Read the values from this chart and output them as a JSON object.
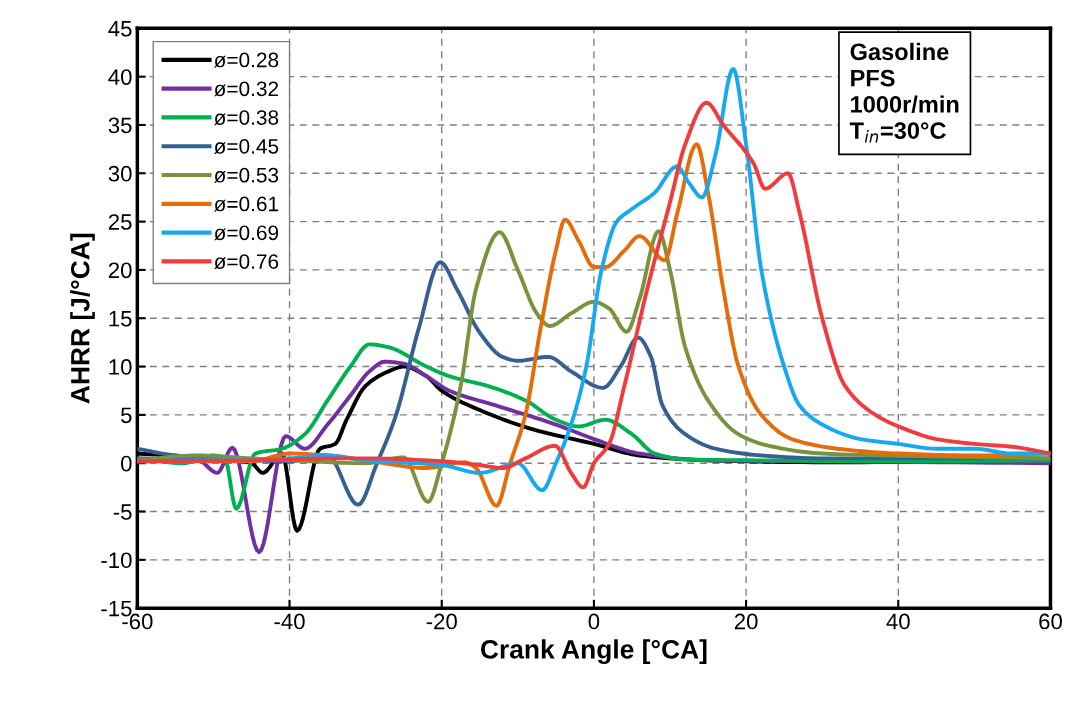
{
  "chart_data": {
    "type": "line",
    "xlabel": "Crank Angle [°CA]",
    "ylabel": "AHRR [J/°CA]",
    "xlim": [
      -60,
      60
    ],
    "xticks": [
      -60,
      -40,
      -20,
      0,
      20,
      40,
      60
    ],
    "ylim": [
      -15,
      45
    ],
    "yticks": [
      -15,
      -10,
      -5,
      0,
      5,
      10,
      15,
      20,
      25,
      30,
      35,
      40,
      45
    ],
    "grid": true,
    "legend": "top left",
    "line_style": "solid",
    "marker": "none",
    "annotations": [
      "Gasoline",
      "PFS",
      "1000r/min",
      "T$_{in}$=30°C"
    ],
    "series": [
      {
        "name": "ø=0.28",
        "color": "#000000",
        "x": [
          -60,
          -50,
          -45,
          -43.5,
          -41,
          -39,
          -36,
          -34,
          -32.5,
          -30,
          -27,
          -25,
          -22,
          -20,
          -15,
          -8,
          0,
          6,
          15,
          30,
          60
        ],
        "values": [
          1,
          0.5,
          0,
          -1,
          1,
          -7,
          1.5,
          2,
          4.5,
          8,
          9.5,
          10,
          9,
          7.5,
          5.5,
          3.5,
          2,
          0.8,
          0.3,
          0.1,
          0.2
        ]
      },
      {
        "name": "ø=0.32",
        "color": "#7030a0",
        "x": [
          -60,
          -52,
          -49.5,
          -47.5,
          -44,
          -40.5,
          -38,
          -35,
          -32,
          -29.5,
          -27.5,
          -25,
          -22,
          -19,
          -13,
          -5,
          0,
          6,
          15,
          30,
          60
        ],
        "values": [
          0.5,
          0.3,
          -1,
          1.6,
          -9.2,
          2.8,
          1.5,
          4,
          7,
          9.5,
          10.5,
          10.3,
          9,
          7.5,
          6,
          4,
          2.5,
          1,
          0.3,
          0.2,
          0
        ]
      },
      {
        "name": "ø=0.38",
        "color": "#00b050",
        "x": [
          -60,
          -54,
          -50,
          -48.5,
          -47,
          -44.5,
          -41,
          -38,
          -35,
          -32,
          -29.5,
          -27,
          -22,
          -19,
          -14,
          -9,
          -5,
          -2,
          1.5,
          5,
          8,
          12,
          20,
          40,
          60
        ],
        "values": [
          0.5,
          0,
          0.8,
          0.5,
          -4.7,
          1,
          1.5,
          3,
          6.5,
          10,
          12.3,
          12,
          10,
          9,
          8,
          6.5,
          4.5,
          3.8,
          4.5,
          3,
          1,
          0.4,
          0.3,
          0.2,
          0.3
        ]
      },
      {
        "name": "ø=0.45",
        "color": "#376092",
        "x": [
          -60,
          -55,
          -45,
          -40,
          -35,
          -31,
          -28.5,
          -26,
          -23,
          -20.2,
          -18,
          -15,
          -12,
          -10,
          -6,
          -3,
          1.2,
          3.5,
          5.8,
          7.5,
          9,
          12,
          16,
          22,
          30,
          60
        ],
        "values": [
          1.5,
          0.8,
          0.3,
          0.2,
          0.8,
          -4.3,
          0,
          5,
          14,
          20.8,
          18,
          13.5,
          11,
          10.6,
          11,
          9.5,
          7.8,
          10,
          13,
          11,
          6,
          3,
          1.5,
          0.8,
          0.5,
          0.5
        ]
      },
      {
        "name": "ø=0.53",
        "color": "#77933c",
        "x": [
          -60,
          -52,
          -45,
          -40,
          -30,
          -25,
          -21.8,
          -20,
          -17.5,
          -15.5,
          -12.4,
          -10,
          -7.5,
          -5.8,
          -3,
          0,
          2,
          4.3,
          6,
          8.5,
          10,
          12,
          15,
          19,
          23,
          30,
          45,
          60
        ],
        "values": [
          0.3,
          0.8,
          0.5,
          0.3,
          0,
          0.6,
          -4,
          0,
          8,
          18,
          23.9,
          20,
          15.5,
          14.2,
          15.5,
          16.7,
          16,
          13.6,
          17,
          24,
          20,
          12,
          6.5,
          3,
          1.8,
          1,
          0.7,
          0.5
        ]
      },
      {
        "name": "ø=0.61",
        "color": "#e46c0a",
        "x": [
          -60,
          -45,
          -40,
          -35,
          -30,
          -22,
          -17,
          -15.5,
          -12.8,
          -11,
          -9,
          -7,
          -5,
          -3.8,
          -2,
          0,
          1.5,
          4,
          6,
          9.3,
          11,
          13.5,
          15,
          17,
          19,
          22,
          26,
          32,
          40,
          50,
          60
        ],
        "values": [
          0.2,
          0.2,
          1,
          0.8,
          0.3,
          -0.5,
          0.1,
          -0.5,
          -4.4,
          0,
          5,
          14,
          22,
          25.2,
          23,
          20.3,
          20.3,
          22,
          23.5,
          21,
          26,
          33,
          28,
          18,
          10,
          5,
          2.5,
          1.5,
          1,
          0.8,
          1
        ]
      },
      {
        "name": "ø=0.69",
        "color": "#18a8f0",
        "x": [
          -60,
          -40,
          -35,
          -30,
          -20,
          -15,
          -10,
          -6.8,
          -5,
          -3,
          -1,
          1,
          3,
          5,
          8,
          10.9,
          12.5,
          14.2,
          16,
          18.3,
          20,
          22,
          25,
          27,
          30,
          35,
          40,
          45,
          50,
          55,
          60
        ],
        "values": [
          0.2,
          0.5,
          0.8,
          0.3,
          -0.2,
          -1,
          0,
          -2.8,
          0,
          4,
          10,
          20,
          25,
          26.3,
          28,
          30.7,
          29,
          27.5,
          32,
          40.8,
          33,
          20,
          10,
          6,
          4,
          2.5,
          2,
          1.5,
          1.5,
          1,
          1
        ]
      },
      {
        "name": "ø=0.76",
        "color": "#f03c3c",
        "x": [
          -60,
          -45,
          -33,
          -30,
          -20,
          -15,
          -12,
          -9,
          -5.1,
          -3,
          -1.4,
          0,
          2,
          4,
          7,
          10,
          12,
          14.8,
          17,
          21,
          22.5,
          25.5,
          27,
          30,
          33,
          37,
          41,
          45,
          50,
          55,
          60
        ],
        "values": [
          0.2,
          0.3,
          0.5,
          0.5,
          0.2,
          -0.2,
          -0.5,
          0.5,
          1.8,
          -1,
          -2.5,
          0,
          2,
          8,
          18,
          27,
          33,
          37.3,
          35,
          31,
          28.4,
          30,
          26,
          15,
          8,
          5,
          3.5,
          2.5,
          2,
          1.7,
          1
        ]
      }
    ]
  }
}
